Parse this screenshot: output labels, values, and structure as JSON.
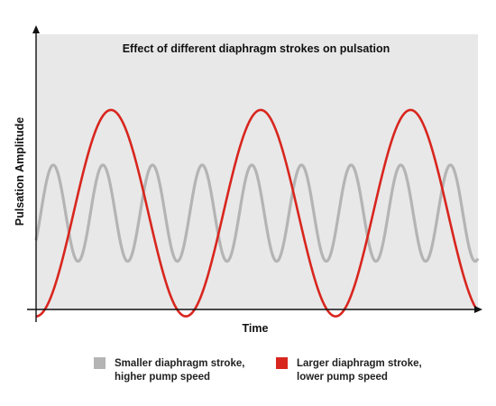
{
  "chart_data": {
    "type": "line",
    "title": "Effect of different diaphragm strokes on pulsation",
    "xlabel": "Time",
    "ylabel": "Pulsation Amplitude",
    "grid": false,
    "legend_position": "bottom",
    "plot_background": "#e8e8e8",
    "axis_color": "#111111",
    "series": [
      {
        "legend_lines": [
          "Smaller diaphragm stroke,",
          "higher pump speed"
        ],
        "color": "#b4b4b4",
        "amplitude": 0.7,
        "periods": 8.9,
        "phase": -0.6
      },
      {
        "legend_lines": [
          "Larger diaphragm stroke,",
          "lower pump speed"
        ],
        "color": "#d8261e",
        "amplitude": 1.5,
        "periods": 2.95,
        "phase": -1.5708
      }
    ],
    "ylim": [
      -2,
      2
    ],
    "xlim": [
      0,
      1
    ]
  }
}
